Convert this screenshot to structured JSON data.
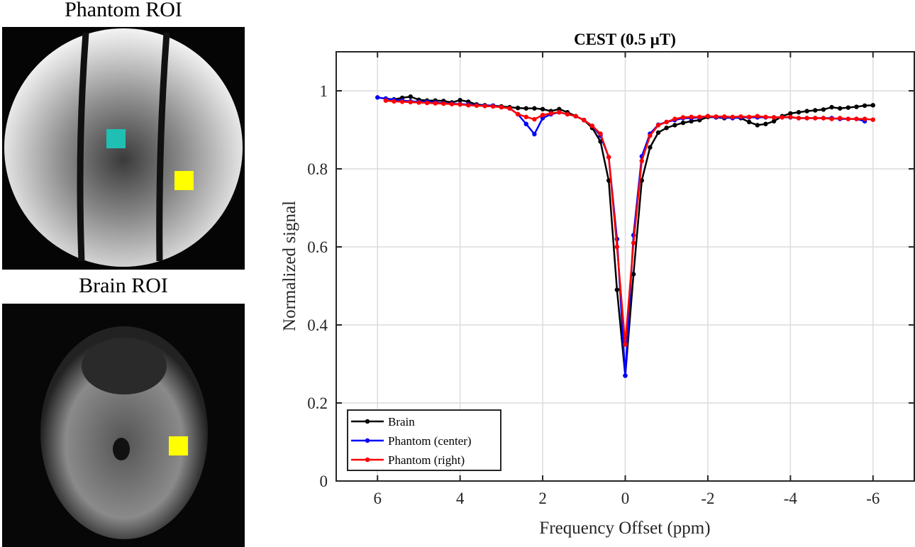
{
  "panels": {
    "phantom_label": "Phantom ROI",
    "brain_label": "Brain ROI",
    "roi_colors": {
      "phantom_center": "#1fbfb3",
      "phantom_right": "#ffff00",
      "brain": "#ffff00"
    }
  },
  "chart_data": {
    "type": "line",
    "title": "CEST (0.5 µT)",
    "xlabel": "Frequency Offset (ppm)",
    "ylabel": "Normalized signal",
    "xlim": [
      7,
      -7
    ],
    "x_reversed": true,
    "ylim": [
      0,
      1.1
    ],
    "xticks": [
      6,
      4,
      2,
      0,
      -2,
      -4,
      -6
    ],
    "yticks": [
      0,
      0.2,
      0.4,
      0.6,
      0.8,
      1
    ],
    "ytick_labels": [
      "0",
      "0.2",
      "0.4",
      "0.6",
      "0.8",
      "1"
    ],
    "grid": true,
    "legend": "bottom-left",
    "x": [
      6,
      5.8,
      5.6,
      5.4,
      5.2,
      5,
      4.8,
      4.6,
      4.4,
      4.2,
      4,
      3.8,
      3.6,
      3.4,
      3.2,
      3,
      2.8,
      2.6,
      2.4,
      2.2,
      2,
      1.8,
      1.6,
      1.4,
      1.2,
      1,
      0.8,
      0.6,
      0.4,
      0.2,
      0,
      -0.2,
      -0.4,
      -0.6,
      -0.8,
      -1,
      -1.2,
      -1.4,
      -1.6,
      -1.8,
      -2,
      -2.2,
      -2.4,
      -2.6,
      -2.8,
      -3,
      -3.2,
      -3.4,
      -3.6,
      -3.8,
      -4,
      -4.2,
      -4.4,
      -4.6,
      -4.8,
      -5,
      -5.2,
      -5.4,
      -5.6,
      -5.8,
      -6
    ],
    "series": [
      {
        "name": "Brain",
        "color": "#000000",
        "values": [
          null,
          0.98,
          0.978,
          0.982,
          0.985,
          0.977,
          0.975,
          0.975,
          0.974,
          0.97,
          0.976,
          0.972,
          0.965,
          0.963,
          0.962,
          0.96,
          0.958,
          0.956,
          0.955,
          0.955,
          0.953,
          0.948,
          0.953,
          0.945,
          0.935,
          0.925,
          0.905,
          0.87,
          0.77,
          0.49,
          0.27,
          0.53,
          0.77,
          0.855,
          0.893,
          0.905,
          0.912,
          0.918,
          0.922,
          0.925,
          0.933,
          0.932,
          0.93,
          0.932,
          0.93,
          0.92,
          0.912,
          0.915,
          0.922,
          0.935,
          0.942,
          0.945,
          0.948,
          0.95,
          0.952,
          0.958,
          0.955,
          0.957,
          0.959,
          0.962,
          0.963
        ]
      },
      {
        "name": "Phantom (center)",
        "color": "#0000ff",
        "values": [
          0.983,
          0.98,
          0.977,
          0.975,
          0.973,
          0.972,
          0.972,
          0.97,
          0.968,
          0.967,
          0.966,
          0.965,
          0.963,
          0.962,
          0.962,
          0.958,
          0.955,
          0.94,
          0.915,
          0.889,
          0.93,
          0.94,
          0.945,
          0.94,
          0.935,
          0.925,
          0.91,
          0.885,
          0.83,
          0.62,
          0.27,
          0.63,
          0.832,
          0.89,
          0.913,
          0.92,
          0.925,
          0.93,
          0.93,
          0.932,
          0.935,
          0.932,
          0.932,
          0.93,
          0.932,
          0.932,
          0.932,
          0.932,
          0.932,
          0.932,
          0.932,
          0.93,
          0.93,
          0.93,
          0.93,
          0.93,
          0.928,
          0.928,
          0.928,
          0.922,
          null
        ]
      },
      {
        "name": "Phantom (right)",
        "color": "#ff0000",
        "values": [
          null,
          0.975,
          0.973,
          0.972,
          0.971,
          0.97,
          0.969,
          0.968,
          0.967,
          0.966,
          0.965,
          0.963,
          0.962,
          0.961,
          0.96,
          0.958,
          0.955,
          0.94,
          0.933,
          0.927,
          0.938,
          0.942,
          0.945,
          0.94,
          0.935,
          0.925,
          0.91,
          0.89,
          0.83,
          0.6,
          0.35,
          0.61,
          0.82,
          0.885,
          0.912,
          0.92,
          0.928,
          0.932,
          0.933,
          0.933,
          0.935,
          0.934,
          0.934,
          0.933,
          0.934,
          0.933,
          0.935,
          0.933,
          0.932,
          0.932,
          0.933,
          0.93,
          0.93,
          0.93,
          0.93,
          0.928,
          0.93,
          0.928,
          0.928,
          0.928,
          0.926
        ]
      }
    ]
  }
}
